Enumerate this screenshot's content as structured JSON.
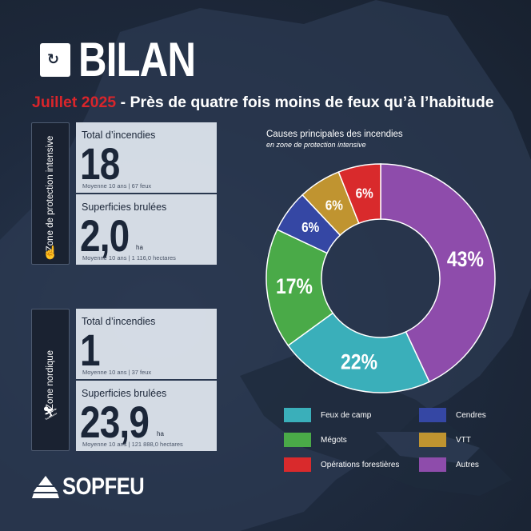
{
  "header": {
    "title": "BILAN",
    "month": "Juillet 2025",
    "headline": " - Près de quatre fois moins de feux qu’à l’habitude"
  },
  "zones": [
    {
      "label": "Zone de protection intensive",
      "cards": [
        {
          "label": "Total d’incendies",
          "value": "18",
          "unit": "",
          "average": "Moyenne 10 ans | 67 feux"
        },
        {
          "label": "Superficies brulées",
          "value": "2,0",
          "unit": "ha",
          "average": "Moyenne 10 ans | 1 116,0 hectares"
        }
      ]
    },
    {
      "label": "Zone nordique",
      "cards": [
        {
          "label": "Total d’incendies",
          "value": "1",
          "unit": "",
          "average": "Moyenne 10 ans | 37 feux"
        },
        {
          "label": "Superficies brulées",
          "value": "23,9",
          "unit": "ha",
          "average": "Moyenne 10 ans | 121 888,0 hectares"
        }
      ]
    }
  ],
  "chart_data": {
    "type": "pie",
    "title": "Causes principales des incendies",
    "subtitle": "en zone de protection intensive",
    "slices": [
      {
        "name": "Autres",
        "value": 43,
        "label": "43%",
        "color": "#8e4cab"
      },
      {
        "name": "Feux de camp",
        "value": 22,
        "label": "22%",
        "color": "#3aafba"
      },
      {
        "name": "Mégots",
        "value": 17,
        "label": "17%",
        "color": "#4aaa48"
      },
      {
        "name": "Cendres",
        "value": 6,
        "label": "6%",
        "color": "#3547a4"
      },
      {
        "name": "VTT",
        "value": 6,
        "label": "6%",
        "color": "#c09430"
      },
      {
        "name": "Opérations forestières",
        "value": 6,
        "label": "6%",
        "color": "#d92a2c"
      }
    ],
    "legend": [
      {
        "name": "Feux de camp",
        "color": "#3aafba"
      },
      {
        "name": "Cendres",
        "color": "#3547a4"
      },
      {
        "name": "Mégots",
        "color": "#4aaa48"
      },
      {
        "name": "VTT",
        "color": "#c09430"
      },
      {
        "name": "Opérations forestières",
        "color": "#d92a2c"
      },
      {
        "name": "Autres",
        "color": "#8e4cab"
      }
    ],
    "donut": true,
    "legend_position": "bottom"
  },
  "brand": {
    "name": "SOPFEU"
  }
}
